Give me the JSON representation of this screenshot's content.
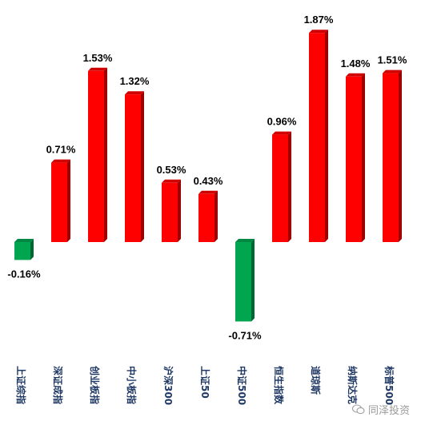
{
  "chart_data": {
    "type": "bar",
    "categories": [
      "上证综指",
      "深证成指",
      "创业板指",
      "中小板指",
      "沪深300",
      "上证50",
      "中证500",
      "恒生指数",
      "道琼斯",
      "纳斯达克",
      "标普500"
    ],
    "values": [
      -0.16,
      0.71,
      1.53,
      1.32,
      0.53,
      0.43,
      -0.71,
      0.96,
      1.87,
      1.48,
      1.51
    ],
    "data_labels": [
      "-0.16%",
      "0.71%",
      "1.53%",
      "1.32%",
      "0.53%",
      "0.43%",
      "-0.71%",
      "0.96%",
      "1.87%",
      "1.48%",
      "1.51%"
    ],
    "title": "",
    "xlabel": "",
    "ylabel": "",
    "ylim": [
      -0.8,
      2.0
    ],
    "grid": false,
    "legend": "none",
    "colors": {
      "positive": "#ff0000",
      "negative": "#00a550"
    }
  },
  "watermark": {
    "text": "同泽投资",
    "icon": "wechat-icon"
  }
}
